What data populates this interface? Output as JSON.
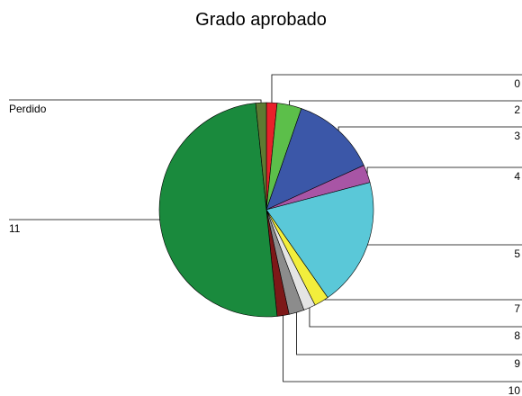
{
  "chart_data": {
    "type": "pie",
    "title": "Grado aprobado",
    "categories": [
      "0",
      "2",
      "3",
      "4",
      "5",
      "7",
      "8",
      "9",
      "10",
      "11",
      "Perdido"
    ],
    "values": [
      1.6,
      3.7,
      12.9,
      2.7,
      19.4,
      2.2,
      1.8,
      2.3,
      1.8,
      50,
      1.6
    ],
    "colors": [
      "#e8212a",
      "#5cbf4a",
      "#3b57a8",
      "#a855a5",
      "#5ac8d8",
      "#f2ee3c",
      "#e4e4e4",
      "#8c8c8c",
      "#7d1818",
      "#1a8a3d",
      "#5e7a32"
    ]
  }
}
